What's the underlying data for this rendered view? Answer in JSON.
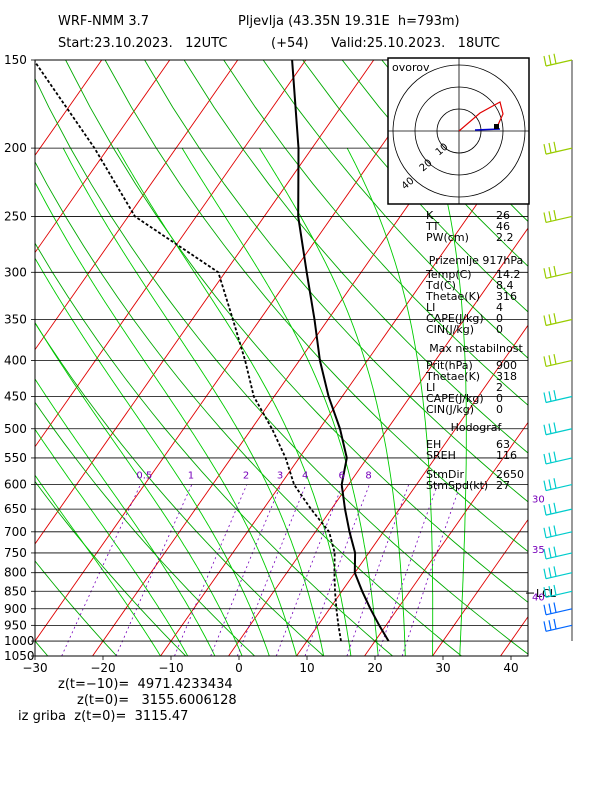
{
  "header": {
    "model": "WRF-NMM 3.7",
    "location": "Pljevlja (43.35N 19.31E  h=793m)",
    "start": "Start:23.10.2023.   12UTC",
    "lead": "(+54)",
    "valid": "Valid:25.10.2023.   18UTC"
  },
  "chart_data": {
    "type": "line",
    "title": "",
    "xlabel": "",
    "ylabel": "",
    "x_ticks": [
      -30,
      -20,
      -10,
      0,
      10,
      20,
      30,
      40
    ],
    "p_ticks": [
      150,
      200,
      250,
      300,
      350,
      400,
      450,
      500,
      550,
      600,
      650,
      700,
      750,
      800,
      850,
      900,
      950,
      1000,
      1050
    ],
    "xlim": [
      -30,
      42.5
    ],
    "plim": [
      150,
      1050
    ],
    "y_scale": "log-pressure",
    "mixing_ratio_labels": [
      "0.5",
      "1",
      "2",
      "3",
      "4",
      "6",
      "8"
    ],
    "series": [
      {
        "values": [
          [
            1000,
            22
          ],
          [
            950,
            19
          ],
          [
            900,
            16
          ],
          [
            850,
            13
          ],
          [
            800,
            10
          ],
          [
            750,
            8
          ],
          [
            700,
            5
          ],
          [
            650,
            2
          ],
          [
            600,
            -1
          ],
          [
            550,
            -3
          ],
          [
            500,
            -7
          ],
          [
            450,
            -12
          ],
          [
            400,
            -17
          ],
          [
            350,
            -22
          ],
          [
            300,
            -28
          ],
          [
            250,
            -35
          ],
          [
            200,
            -42
          ],
          [
            150,
            -52
          ]
        ]
      },
      {
        "values": [
          [
            1000,
            15
          ],
          [
            950,
            13
          ],
          [
            900,
            11
          ],
          [
            850,
            9
          ],
          [
            800,
            7
          ],
          [
            750,
            5
          ],
          [
            700,
            2
          ],
          [
            650,
            -3
          ],
          [
            600,
            -8
          ],
          [
            550,
            -12
          ],
          [
            500,
            -17
          ],
          [
            450,
            -23
          ],
          [
            400,
            -28
          ],
          [
            350,
            -34
          ],
          [
            300,
            -41
          ],
          [
            250,
            -59
          ],
          [
            200,
            -72
          ],
          [
            150,
            -90
          ]
        ]
      }
    ],
    "lcl_label": "LCL",
    "lcl_pressure": 855,
    "purple_labels": [
      {
        "text": "30",
        "p": 628
      },
      {
        "text": "35",
        "p": 740
      },
      {
        "text": "40",
        "p": 865
      }
    ]
  },
  "colors": {
    "isotherm": "#e00000",
    "dry_adiabat": "#00aa00",
    "moist_adiabat": "#00cc00",
    "mixing_ratio": "#7700bb",
    "grid": "#000000",
    "wind_upper": "#99cc00",
    "wind_lower": "#00cccc",
    "wind_low": "#0066ff"
  },
  "hodograph": {
    "title": "ovorov",
    "ring_labels": [
      "10",
      "20",
      "40"
    ]
  },
  "panels": {
    "indices": {
      "rows": [
        {
          "k": "K",
          "v": "26"
        },
        {
          "k": "TT",
          "v": "46"
        },
        {
          "k": "PW(cm)",
          "v": "2.2"
        }
      ]
    },
    "surface": {
      "title": "Prizemlje 917hPa",
      "rows": [
        {
          "k": "Temp(C)",
          "v": "14.2"
        },
        {
          "k": "Td(C)",
          "v": "8.4"
        },
        {
          "k": "Thetae(K)",
          "v": "316"
        },
        {
          "k": "LI",
          "v": "4"
        },
        {
          "k": "CAPE(J/kg)",
          "v": "0"
        },
        {
          "k": "CIN(J/kg)",
          "v": "0"
        }
      ]
    },
    "max_unstable": {
      "title": "Max nestabilnost",
      "rows": [
        {
          "k": "Prit(hPa)",
          "v": "900"
        },
        {
          "k": "Thetae(K)",
          "v": "318"
        },
        {
          "k": "LI",
          "v": "2"
        },
        {
          "k": "CAPE(J/kg)",
          "v": "0"
        },
        {
          "k": "CIN(J/kg)",
          "v": "0"
        }
      ]
    },
    "hodograf": {
      "title": "Hodograf",
      "rows": [
        {
          "k": "EH",
          "v": "63"
        },
        {
          "k": "SREH",
          "v": "116"
        },
        {
          "k": "",
          "v": ""
        },
        {
          "k": "StmDir",
          "v": "2650"
        },
        {
          "k": "StmSpd(kt)",
          "v": "27"
        }
      ]
    }
  },
  "footer": {
    "z1": "z(t=−10)=  4971.4233434",
    "z2": "z(t=0)=   3155.6006128",
    "z3": "iz griba  z(t=0)=  3115.47"
  }
}
